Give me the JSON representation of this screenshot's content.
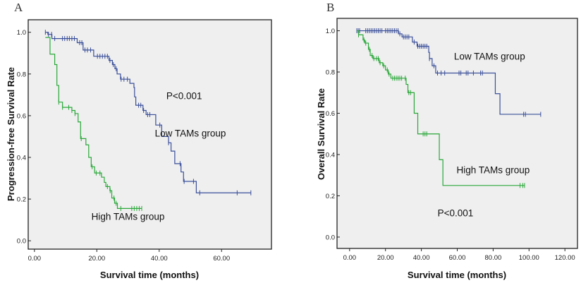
{
  "chart_data": [
    {
      "panel_label": "A",
      "type": "line",
      "subtype": "kaplan-meier step",
      "xlabel": "Survival time (months)",
      "ylabel": "Progression-free Survival Rate",
      "xlim": [
        -2,
        76
      ],
      "ylim": [
        -0.04,
        1.06
      ],
      "xticks": [
        "0.00",
        "20.00",
        "40.00",
        "60.00"
      ],
      "xtick_values": [
        0,
        20,
        40,
        60
      ],
      "yticks": [
        "0.0",
        "0.2",
        "0.4",
        "0.6",
        "0.8",
        "1.0"
      ],
      "ytick_values": [
        0,
        0.2,
        0.4,
        0.6,
        0.8,
        1.0
      ],
      "grid": false,
      "background": "#efefef",
      "annotations": [
        {
          "text": "P<0.001",
          "x": 48,
          "y": 0.68
        },
        {
          "text": "Low TAMs group",
          "x": 50,
          "y": 0.5
        },
        {
          "text": "High TAMs group",
          "x": 30,
          "y": 0.1
        }
      ],
      "series": [
        {
          "name": "Low TAMs group",
          "color": "#3a4f9a",
          "steps": [
            [
              3.5,
              1.0
            ],
            [
              4.3,
              0.99
            ],
            [
              5.6,
              0.97
            ],
            [
              13.7,
              0.95
            ],
            [
              15.6,
              0.915
            ],
            [
              19,
              0.885
            ],
            [
              23.9,
              0.865
            ],
            [
              25,
              0.845
            ],
            [
              25.8,
              0.825
            ],
            [
              26.5,
              0.8
            ],
            [
              27.6,
              0.775
            ],
            [
              30.6,
              0.755
            ],
            [
              31.9,
              0.735
            ],
            [
              32.1,
              0.69
            ],
            [
              32.5,
              0.65
            ],
            [
              34.8,
              0.625
            ],
            [
              35.8,
              0.605
            ],
            [
              38.9,
              0.555
            ],
            [
              40.8,
              0.5
            ],
            [
              43,
              0.47
            ],
            [
              43.8,
              0.43
            ],
            [
              45,
              0.37
            ],
            [
              47,
              0.33
            ],
            [
              47.8,
              0.285
            ],
            [
              51.9,
              0.23
            ]
          ],
          "end": 69.4,
          "censored": [
            3.5,
            4.5,
            5.5,
            6.5,
            9,
            9.7,
            10.5,
            11.2,
            12,
            12.8,
            14.5,
            15.2,
            16.2,
            17,
            18,
            20.2,
            21,
            21.8,
            22.6,
            23.4,
            24.2,
            25.3,
            26.2,
            27.8,
            28.7,
            29.8,
            33.4,
            34.1,
            35,
            36.3,
            37,
            40.2,
            43,
            46.7,
            48,
            51,
            53,
            65,
            69.4
          ]
        },
        {
          "name": "High TAMs group",
          "color": "#2aa83a",
          "steps": [
            [
              3.5,
              0.975
            ],
            [
              5,
              0.895
            ],
            [
              6.5,
              0.845
            ],
            [
              7.2,
              0.745
            ],
            [
              7.8,
              0.665
            ],
            [
              9,
              0.64
            ],
            [
              12,
              0.625
            ],
            [
              13,
              0.61
            ],
            [
              14,
              0.57
            ],
            [
              14.8,
              0.49
            ],
            [
              16.5,
              0.46
            ],
            [
              17.4,
              0.4
            ],
            [
              18.2,
              0.355
            ],
            [
              19.3,
              0.325
            ],
            [
              21.5,
              0.305
            ],
            [
              22.4,
              0.28
            ],
            [
              22.9,
              0.26
            ],
            [
              24.2,
              0.24
            ],
            [
              24.8,
              0.205
            ],
            [
              25.7,
              0.18
            ],
            [
              26.6,
              0.155
            ]
          ],
          "end": 34.4,
          "censored": [
            7.8,
            9,
            11,
            12,
            13,
            15,
            18.5,
            19.8,
            21,
            23.4,
            24.3,
            25.5,
            26.2,
            27.7,
            31.2,
            32,
            32.8,
            33.6,
            34.4
          ]
        }
      ]
    },
    {
      "panel_label": "B",
      "type": "line",
      "subtype": "kaplan-meier step",
      "xlabel": "Survival time (months)",
      "ylabel": "Overall Survival Rate",
      "xlim": [
        -7,
        127
      ],
      "ylim": [
        -0.055,
        1.06
      ],
      "xticks": [
        "0.00",
        "20.00",
        "40.00",
        "60.00",
        "80.00",
        "100.00",
        "120.00"
      ],
      "xtick_values": [
        0,
        20,
        40,
        60,
        80,
        100,
        120
      ],
      "yticks": [
        "0.0",
        "0.2",
        "0.4",
        "0.6",
        "0.8",
        "1.0"
      ],
      "ytick_values": [
        0,
        0.2,
        0.4,
        0.6,
        0.8,
        1.0
      ],
      "grid": false,
      "background": "#efefef",
      "annotations": [
        {
          "text": "Low TAMs group",
          "x": 78,
          "y": 0.86
        },
        {
          "text": "High TAMs group",
          "x": 80,
          "y": 0.31
        },
        {
          "text": "P<0.001",
          "x": 59,
          "y": 0.1
        }
      ],
      "series": [
        {
          "name": "Low TAMs group",
          "color": "#3a4f9a",
          "steps": [
            [
              4,
              1.0
            ],
            [
              27.2,
              0.985
            ],
            [
              29.2,
              0.97
            ],
            [
              35,
              0.945
            ],
            [
              37.6,
              0.925
            ],
            [
              44.1,
              0.895
            ],
            [
              44.5,
              0.865
            ],
            [
              46,
              0.83
            ],
            [
              48,
              0.795
            ],
            [
              81.2,
              0.695
            ],
            [
              83.8,
              0.595
            ]
          ],
          "end": 106.5,
          "censored": [
            4,
            4.8,
            5.6,
            9,
            10,
            11,
            12,
            13,
            14,
            15,
            16,
            17,
            18,
            20,
            21,
            22,
            23,
            24,
            25,
            26,
            27,
            28,
            30,
            31,
            32,
            33,
            36,
            38,
            39,
            40,
            41,
            42,
            43,
            44.5,
            47,
            49,
            51,
            53,
            61,
            62,
            65,
            66,
            69,
            73,
            74,
            97,
            98,
            106.5
          ]
        },
        {
          "name": "High TAMs group",
          "color": "#2aa83a",
          "steps": [
            [
              4,
              1.0
            ],
            [
              5,
              0.98
            ],
            [
              7.5,
              0.955
            ],
            [
              8.5,
              0.94
            ],
            [
              10.5,
              0.91
            ],
            [
              11.5,
              0.88
            ],
            [
              13,
              0.865
            ],
            [
              16.5,
              0.845
            ],
            [
              18.5,
              0.83
            ],
            [
              20,
              0.81
            ],
            [
              21.5,
              0.79
            ],
            [
              23,
              0.77
            ],
            [
              31.5,
              0.74
            ],
            [
              32.5,
              0.7
            ],
            [
              36,
              0.6
            ],
            [
              38,
              0.5
            ],
            [
              50,
              0.375
            ],
            [
              52,
              0.25
            ]
          ],
          "end": 97.5,
          "censored": [
            5,
            8,
            9,
            11,
            12.5,
            13.5,
            15,
            16,
            17,
            19,
            21,
            22,
            24,
            25,
            26,
            27,
            28,
            29,
            31,
            33,
            34,
            41,
            42,
            43,
            95,
            96.5,
            97.5
          ]
        }
      ]
    }
  ]
}
